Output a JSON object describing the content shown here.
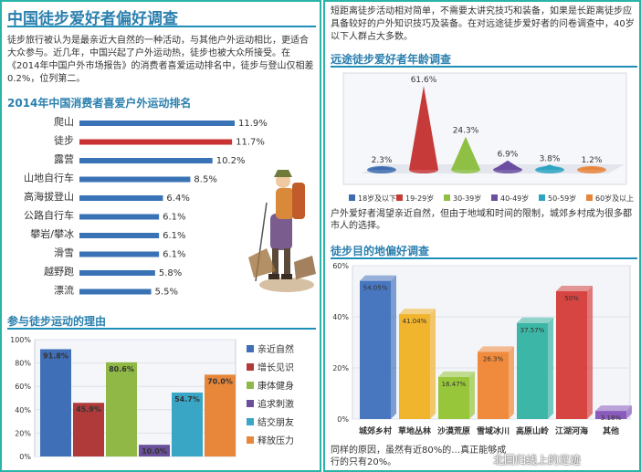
{
  "left": {
    "title": "中国徒步爱好者偏好调查",
    "intro": "徒步旅行被认为是最亲近大自然的一种活动，与其他户外运动相比，更适合大众参与。近几年，中国兴起了户外运动热，徒步也被大众所接受。在《2014年中国户外市场报告》的消费者喜爱运动排名中，徒步与登山仅相差0.2%，位列第二。",
    "rank_heading": "2014年中国消费者喜爱户外运动排名",
    "reasons_heading": "参与徒步运动的理由"
  },
  "right": {
    "intro": "短距离徒步活动相对简单，不需要太讲究技巧和装备，如果是长距离徒步应具备较好的户外知识技巧及装备。在对远途徒步爱好者的问卷调查中，40岁以下人群占大多数。",
    "age_heading": "远途徒步爱好者年龄调查",
    "mid_text": "户外爱好者渴望亲近自然，但由于地域和时间的限制，城郊乡村成为很多都市人的选择。",
    "dest_heading": "徒步目的地偏好调查",
    "foot_text": "同样的原因，虽然有近80%的…真正能够成行的只有20%。",
    "watermark": "北回归线上的足迹"
  },
  "chart_data": [
    {
      "type": "bar",
      "orientation": "horizontal",
      "title": "2014年中国消费者喜爱户外运动排名",
      "categories": [
        "爬山",
        "徒步",
        "露营",
        "山地自行车",
        "高海拔登山",
        "公路自行车",
        "攀岩/攀冰",
        "滑雪",
        "越野跑",
        "漂流"
      ],
      "values": [
        11.9,
        11.7,
        10.2,
        8.5,
        6.4,
        6.1,
        6.1,
        6.1,
        5.8,
        5.5
      ],
      "labels": [
        "11.9%",
        "11.7%",
        "10.2%",
        "8.5%",
        "6.4%",
        "6.1%",
        "6.1%",
        "6.1%",
        "5.8%",
        "5.5%"
      ],
      "colors": [
        "#3a73b5",
        "#c83232",
        "#3a73b5",
        "#3a73b5",
        "#3a73b5",
        "#3a73b5",
        "#3a73b5",
        "#3a73b5",
        "#3a73b5",
        "#3a73b5"
      ]
    },
    {
      "type": "bar",
      "title": "参与徒步运动的理由",
      "categories": [
        "亲近自然",
        "增长见识",
        "康体健身",
        "追求刺激",
        "结交朋友",
        "释放压力"
      ],
      "values": [
        91.8,
        45.9,
        80.6,
        10.0,
        54.7,
        70.0
      ],
      "labels": [
        "91.8%",
        "45.9%",
        "80.6%",
        "10.0%",
        "54.7%",
        "70.0%"
      ],
      "colors": [
        "#3f6fb7",
        "#b03a3a",
        "#8fb847",
        "#6a4f9a",
        "#3aa6c6",
        "#e8873a"
      ],
      "yticks": [
        "0%",
        "20%",
        "40%",
        "60%",
        "80%",
        "100%"
      ],
      "ylim": [
        0,
        100
      ],
      "legend": "right"
    },
    {
      "type": "bar",
      "style": "3d",
      "title": "远途徒步爱好者年龄调查",
      "categories": [
        "18岁及以下",
        "19-29岁",
        "30-39岁",
        "40-49岁",
        "50-59岁",
        "60岁及以上"
      ],
      "values": [
        2.3,
        61.6,
        24.3,
        6.9,
        3.8,
        1.2
      ],
      "labels": [
        "2.3%",
        "61.6%",
        "24.3%",
        "6.9%",
        "3.8%",
        "1.2%"
      ],
      "colors": [
        "#3d6cb0",
        "#c73a3a",
        "#8fbf45",
        "#6b4ea1",
        "#2ea4c3",
        "#e8853c"
      ],
      "legend": "bottom"
    },
    {
      "type": "bar",
      "style": "3d",
      "title": "徒步目的地偏好调查",
      "categories": [
        "城郊乡村",
        "草地丛林",
        "沙漠荒原",
        "雪域冰川",
        "高原山岭",
        "江湖河海",
        "其他"
      ],
      "values": [
        54.05,
        41.04,
        16.47,
        26.3,
        37.57,
        50,
        3.18
      ],
      "labels": [
        "54.05%",
        "41.04%",
        "16.47%",
        "26.3%",
        "37.57%",
        "50%",
        "3.18%"
      ],
      "colors": [
        "#4877c0",
        "#f0b42d",
        "#98c63b",
        "#f08a3c",
        "#3cb6a6",
        "#d64541",
        "#8a5bbd"
      ],
      "yticks": [
        "0%",
        "20%",
        "40%",
        "60%"
      ],
      "ylim": [
        0,
        60
      ]
    }
  ]
}
